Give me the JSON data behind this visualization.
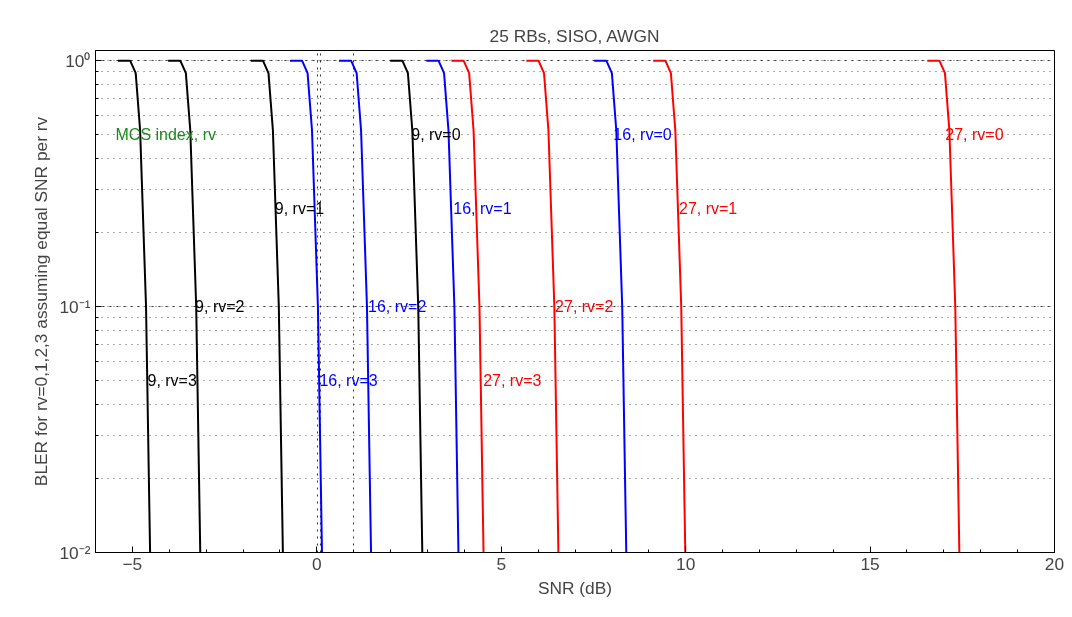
{
  "chart_data": {
    "type": "line",
    "title": "25 RBs, SISO, AWGN",
    "xlabel": "SNR (dB)",
    "ylabel": "BLER for rv=0,1,2,3 assuming equal SNR per rv",
    "log": "y",
    "xlim": [
      -6,
      20
    ],
    "ylim": [
      0.01,
      1.1
    ],
    "xticks": [
      -5,
      0,
      5,
      10,
      15,
      20
    ],
    "yticks": [
      {
        "value": 0.01,
        "label": "10⁻²"
      },
      {
        "value": 0.1,
        "label": "10⁻¹"
      },
      {
        "value": 1,
        "label": "10⁰"
      }
    ],
    "grid": true,
    "marker": "none",
    "line_style": "solid",
    "series": [
      {
        "color": "#000000",
        "x": [
          -5.39,
          -5.06,
          -4.91,
          -4.79,
          -4.63,
          -4.52
        ],
        "values": [
          1,
          1,
          0.89,
          0.52,
          0.1,
          0.01
        ]
      },
      {
        "color": "#000000",
        "x": [
          -4.03,
          -3.7,
          -3.55,
          -3.43,
          -3.27,
          -3.16
        ],
        "values": [
          1,
          1,
          0.89,
          0.52,
          0.1,
          0.01
        ]
      },
      {
        "color": "#000000",
        "x": [
          -1.79,
          -1.46,
          -1.31,
          -1.19,
          -1.03,
          -0.92
        ],
        "values": [
          1,
          1,
          0.89,
          0.52,
          0.1,
          0.01
        ]
      },
      {
        "color": "#000000",
        "x": [
          1.99,
          2.32,
          2.47,
          2.59,
          2.75,
          2.86
        ],
        "values": [
          1,
          1,
          0.89,
          0.52,
          0.1,
          0.01
        ]
      },
      {
        "color": "#0000ff",
        "x": [
          -0.73,
          -0.4,
          -0.25,
          -0.13,
          0.03,
          0.14
        ],
        "values": [
          1,
          1,
          0.89,
          0.52,
          0.1,
          0.01
        ]
      },
      {
        "color": "#0000ff",
        "x": [
          0.6,
          0.93,
          1.08,
          1.2,
          1.36,
          1.47
        ],
        "values": [
          1,
          1,
          0.89,
          0.52,
          0.1,
          0.01
        ]
      },
      {
        "color": "#0000ff",
        "x": [
          2.97,
          3.3,
          3.45,
          3.57,
          3.73,
          3.84
        ],
        "values": [
          1,
          1,
          0.89,
          0.52,
          0.1,
          0.01
        ]
      },
      {
        "color": "#0000ff",
        "x": [
          7.52,
          7.85,
          8.0,
          8.12,
          8.28,
          8.39
        ],
        "values": [
          1,
          1,
          0.89,
          0.52,
          0.1,
          0.01
        ]
      },
      {
        "color": "#ff0000",
        "x": [
          3.65,
          3.98,
          4.13,
          4.25,
          4.41,
          4.52
        ],
        "values": [
          1,
          1,
          0.89,
          0.52,
          0.1,
          0.01
        ]
      },
      {
        "color": "#ff0000",
        "x": [
          5.68,
          6.01,
          6.16,
          6.28,
          6.44,
          6.55
        ],
        "values": [
          1,
          1,
          0.89,
          0.52,
          0.1,
          0.01
        ]
      },
      {
        "color": "#ff0000",
        "x": [
          9.12,
          9.45,
          9.6,
          9.72,
          9.88,
          9.99
        ],
        "values": [
          1,
          1,
          0.89,
          0.52,
          0.1,
          0.01
        ]
      },
      {
        "color": "#ff0000",
        "x": [
          16.55,
          16.88,
          17.03,
          17.15,
          17.31,
          17.42
        ],
        "values": [
          1,
          1,
          0.89,
          0.52,
          0.1,
          0.01
        ]
      }
    ],
    "annotations": [
      {
        "text": "9, rv=3",
        "x": -4.59,
        "y": 0.05
      },
      {
        "text": "9, rv=2",
        "x": -3.3,
        "y": 0.1
      },
      {
        "text": "9, rv=1",
        "x": -1.14,
        "y": 0.25
      },
      {
        "text": "9, rv=0",
        "x": 2.56,
        "y": 0.5
      },
      {
        "text": "16, rv=3",
        "x": 0.07,
        "y": 0.05
      },
      {
        "text": "16, rv=2",
        "x": 1.39,
        "y": 0.1
      },
      {
        "text": "16, rv=1",
        "x": 3.7,
        "y": 0.25
      },
      {
        "text": "16, rv=0",
        "x": 8.04,
        "y": 0.5
      },
      {
        "text": "27, rv=3",
        "x": 4.51,
        "y": 0.05
      },
      {
        "text": "27, rv=2",
        "x": 6.46,
        "y": 0.1
      },
      {
        "text": "27, rv=1",
        "x": 9.82,
        "y": 0.25
      },
      {
        "text": "27, rv=0",
        "x": 17.04,
        "y": 0.5
      },
      "MCS index, rv"
    ]
  }
}
